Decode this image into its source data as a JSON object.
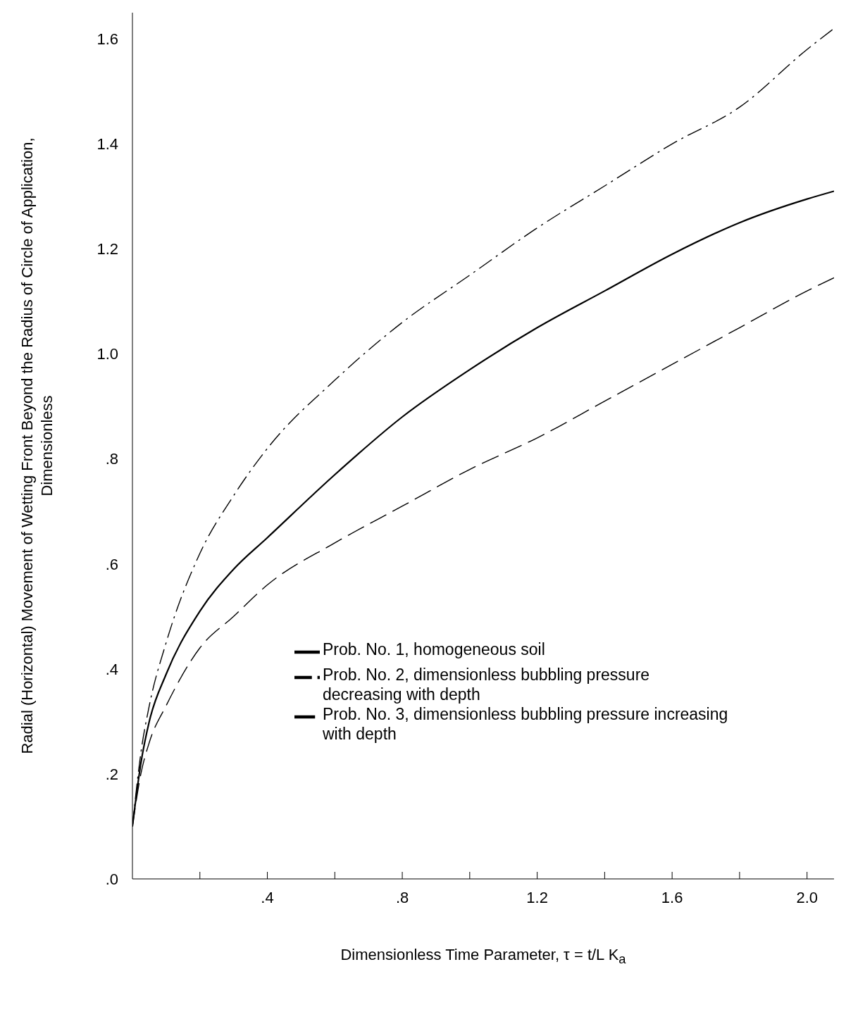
{
  "chart_data": {
    "type": "line",
    "xlabel": "Dimensionless Time Parameter, τ = t/L K$_{a}$",
    "ylabel": "Radial (Horizontal) Movement of Wetting Front Beyond the Radius of Circle of Application, Dimensionless",
    "xlim": [
      0,
      2.08
    ],
    "ylim": [
      0,
      1.65
    ],
    "xticks": [
      {
        "value": 0.2,
        "label": null
      },
      {
        "value": 0.4,
        "label": ".4"
      },
      {
        "value": 0.6,
        "label": null
      },
      {
        "value": 0.8,
        "label": ".8"
      },
      {
        "value": 1.0,
        "label": null
      },
      {
        "value": 1.2,
        "label": "1.2"
      },
      {
        "value": 1.4,
        "label": null
      },
      {
        "value": 1.6,
        "label": "1.6"
      },
      {
        "value": 1.8,
        "label": null
      },
      {
        "value": 2.0,
        "label": "2.0"
      }
    ],
    "yticks": [
      {
        "value": 0,
        "label": ".0"
      },
      {
        "value": 0.2,
        "label": ".2"
      },
      {
        "value": 0.4,
        "label": ".4"
      },
      {
        "value": 0.6,
        "label": ".6"
      },
      {
        "value": 0.8,
        "label": ".8"
      },
      {
        "value": 1.0,
        "label": "1.0"
      },
      {
        "value": 1.2,
        "label": "1.2"
      },
      {
        "value": 1.4,
        "label": "1.4"
      },
      {
        "value": 1.6,
        "label": "1.6"
      }
    ],
    "grid": false,
    "legend": "bottom right",
    "marker": "none",
    "x": [
      0,
      0.025,
      0.05,
      0.1,
      0.2,
      0.3,
      0.4,
      0.6,
      0.8,
      1.0,
      1.2,
      1.4,
      1.6,
      1.8,
      2.0,
      2.08
    ],
    "series": [
      {
        "name": "Prob. No. 1, homogeneous soil",
        "color": "#000000",
        "line_style": "solid",
        "values": [
          0.1,
          0.22,
          0.3,
          0.39,
          0.51,
          0.59,
          0.65,
          0.77,
          0.88,
          0.97,
          1.05,
          1.12,
          1.19,
          1.25,
          1.295,
          1.31
        ]
      },
      {
        "name": "Prob. No. 2, dimensionless bubbling pressure decreasing with depth",
        "color": "#000000",
        "line_style": "dashdot",
        "values": [
          0.1,
          0.24,
          0.33,
          0.45,
          0.62,
          0.73,
          0.82,
          0.95,
          1.06,
          1.15,
          1.24,
          1.32,
          1.4,
          1.47,
          1.58,
          1.62
        ]
      },
      {
        "name": "Prob. No. 3, dimensionless bubbling pressure increasing with depth",
        "color": "#000000",
        "line_style": "dashed",
        "values": [
          0.1,
          0.2,
          0.26,
          0.33,
          0.44,
          0.5,
          0.56,
          0.64,
          0.71,
          0.78,
          0.84,
          0.91,
          0.98,
          1.05,
          1.12,
          1.145
        ]
      }
    ]
  }
}
